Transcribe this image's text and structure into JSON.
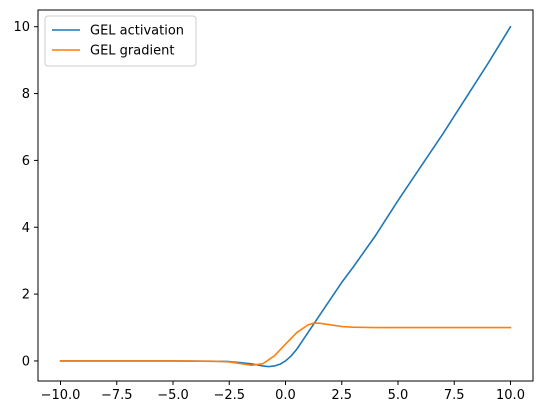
{
  "chart_data": {
    "type": "line",
    "title": "",
    "xlabel": "",
    "ylabel": "",
    "xlim": [
      -11.0,
      11.0
    ],
    "ylim": [
      -0.6,
      10.5
    ],
    "x_ticks": [
      -10.0,
      -7.5,
      -5.0,
      -2.5,
      0.0,
      2.5,
      5.0,
      7.5,
      10.0
    ],
    "x_tick_labels": [
      "−10.0",
      "−7.5",
      "−5.0",
      "−2.5",
      "0.0",
      "2.5",
      "5.0",
      "7.5",
      "10.0"
    ],
    "y_ticks": [
      0,
      2,
      4,
      6,
      8,
      10
    ],
    "y_tick_labels": [
      "0",
      "2",
      "4",
      "6",
      "8",
      "10"
    ],
    "grid": false,
    "legend_placement": "upper-left",
    "series": [
      {
        "name": "GEL activation",
        "color": "#1f77b4",
        "x": [
          -10,
          -5,
          -3,
          -2.5,
          -2,
          -1.5,
          -1,
          -0.75,
          -0.5,
          -0.25,
          0,
          0.25,
          0.5,
          0.75,
          1,
          1.25,
          1.5,
          2,
          2.5,
          3,
          4,
          5,
          6,
          7,
          8,
          9,
          10
        ],
        "y": [
          0,
          0,
          -0.01,
          -0.02,
          -0.05,
          -0.09,
          -0.15,
          -0.17,
          -0.15,
          -0.1,
          0,
          0.15,
          0.35,
          0.6,
          0.85,
          1.1,
          1.35,
          1.85,
          2.35,
          2.8,
          3.75,
          4.8,
          5.8,
          6.8,
          7.85,
          8.9,
          10
        ]
      },
      {
        "name": "GEL gradient",
        "color": "#ff7f0e",
        "x": [
          -10,
          -5,
          -3,
          -2.5,
          -2,
          -1.5,
          -1,
          -0.5,
          0,
          0.5,
          1,
          1.25,
          1.5,
          2,
          2.5,
          3,
          4,
          5,
          6,
          7,
          8,
          9,
          10
        ],
        "y": [
          0,
          0,
          -0.01,
          -0.03,
          -0.08,
          -0.13,
          -0.08,
          0.15,
          0.5,
          0.85,
          1.08,
          1.13,
          1.13,
          1.08,
          1.03,
          1.01,
          1.0,
          1.0,
          1.0,
          1.0,
          1.0,
          1.0,
          1.0
        ]
      }
    ]
  }
}
